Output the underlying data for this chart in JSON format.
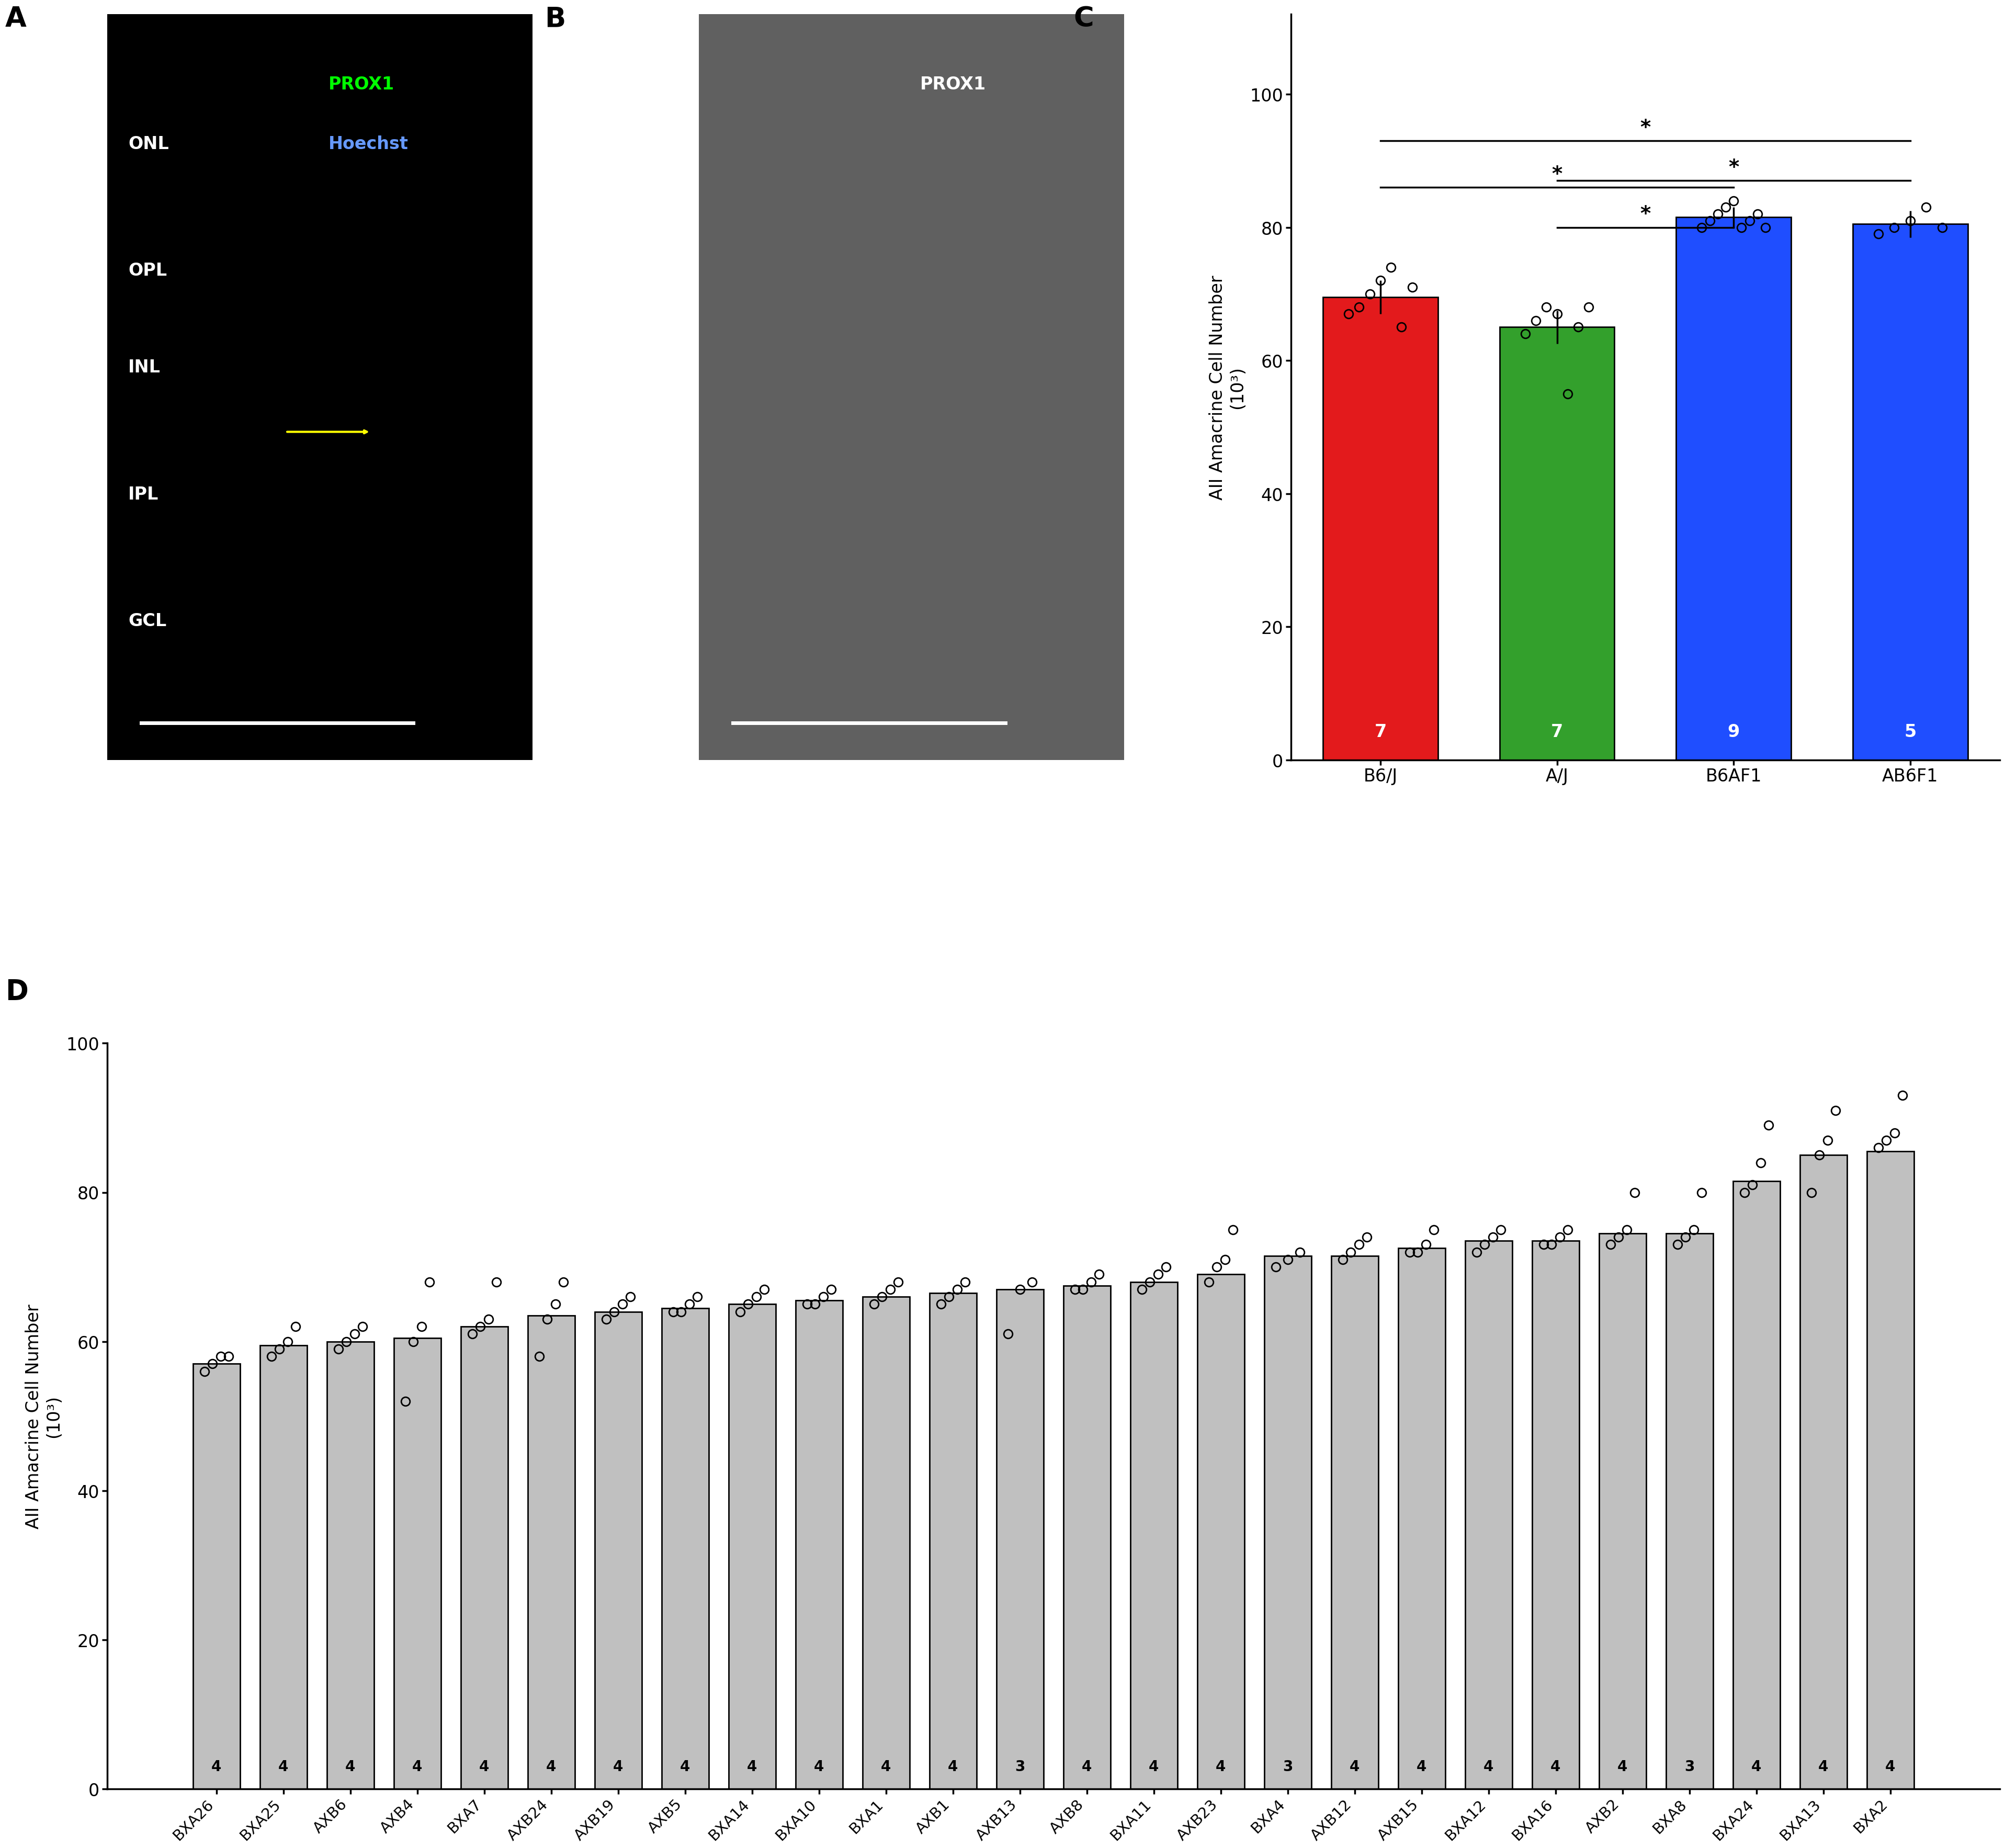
{
  "panel_C": {
    "categories": [
      "B6/J",
      "A/J",
      "B6AF1",
      "AB6F1"
    ],
    "means": [
      69.5,
      65.0,
      81.5,
      80.5
    ],
    "colors": [
      "#e31a1c",
      "#33a02c",
      "#1f4eff",
      "#1f4eff"
    ],
    "ns": [
      7,
      7,
      9,
      5
    ],
    "n_colors": [
      "white",
      "white",
      "white",
      "white"
    ],
    "error": [
      2.5,
      2.5,
      1.5,
      2.0
    ],
    "data_points": [
      [
        67,
        68,
        70,
        72,
        74,
        65,
        71
      ],
      [
        64,
        66,
        68,
        67,
        55,
        65,
        68
      ],
      [
        80,
        81,
        82,
        83,
        84,
        80,
        81,
        82,
        80
      ],
      [
        79,
        80,
        81,
        83,
        80
      ]
    ],
    "yticks": [
      0,
      20,
      40,
      60,
      80,
      100
    ],
    "ylabel": "AII Amacrine Cell Number\n(10³)",
    "sig_data": [
      [
        0,
        2,
        86,
        "*"
      ],
      [
        0,
        3,
        93,
        "*"
      ],
      [
        1,
        2,
        80,
        "*"
      ],
      [
        1,
        3,
        87,
        "*"
      ]
    ]
  },
  "panel_D": {
    "categories": [
      "BXA26",
      "BXA25",
      "AXB6",
      "AXB4",
      "BXA7",
      "AXB24",
      "AXB19",
      "AXB5",
      "BXA14",
      "BXA10",
      "BXA1",
      "AXB1",
      "AXB13",
      "AXB8",
      "BXA11",
      "AXB23",
      "BXA4",
      "AXB12",
      "AXB15",
      "BXA12",
      "BXA16",
      "AXB2",
      "BXA8",
      "BXA24",
      "BXA13",
      "BXA2"
    ],
    "means": [
      57.0,
      59.5,
      60.0,
      60.5,
      62.0,
      63.5,
      64.0,
      64.5,
      65.0,
      65.5,
      66.0,
      66.5,
      67.0,
      67.5,
      68.0,
      69.0,
      71.5,
      71.5,
      72.5,
      73.5,
      73.5,
      74.5,
      74.5,
      81.5,
      85.0,
      85.5
    ],
    "ns": [
      4,
      4,
      4,
      4,
      4,
      4,
      4,
      4,
      4,
      4,
      4,
      4,
      3,
      4,
      4,
      4,
      3,
      4,
      4,
      4,
      4,
      4,
      3,
      4,
      4,
      4
    ],
    "color": "#c0c0c0",
    "edge_color": "#000000",
    "yticks": [
      0,
      20,
      40,
      60,
      80,
      100
    ],
    "ylabel": "AII Amacrine Cell Number\n(10³)",
    "data_points": [
      [
        56,
        57,
        58,
        58
      ],
      [
        58,
        59,
        60,
        62
      ],
      [
        59,
        60,
        61,
        62
      ],
      [
        52,
        60,
        62,
        68
      ],
      [
        61,
        62,
        63,
        68
      ],
      [
        58,
        63,
        65,
        68
      ],
      [
        63,
        64,
        65,
        66
      ],
      [
        64,
        64,
        65,
        66
      ],
      [
        64,
        65,
        66,
        67
      ],
      [
        65,
        65,
        66,
        67
      ],
      [
        65,
        66,
        67,
        68
      ],
      [
        65,
        66,
        67,
        68
      ],
      [
        61,
        67,
        68
      ],
      [
        67,
        67,
        68,
        69
      ],
      [
        67,
        68,
        69,
        70
      ],
      [
        68,
        70,
        71,
        75
      ],
      [
        70,
        71,
        72
      ],
      [
        71,
        72,
        73,
        74
      ],
      [
        72,
        72,
        73,
        75
      ],
      [
        72,
        73,
        74,
        75
      ],
      [
        73,
        73,
        74,
        75
      ],
      [
        73,
        74,
        75,
        80
      ],
      [
        73,
        74,
        75,
        80
      ],
      [
        80,
        81,
        84,
        89
      ],
      [
        80,
        85,
        87,
        91
      ],
      [
        86,
        87,
        88,
        93
      ]
    ]
  },
  "figure_bg": "#ffffff"
}
